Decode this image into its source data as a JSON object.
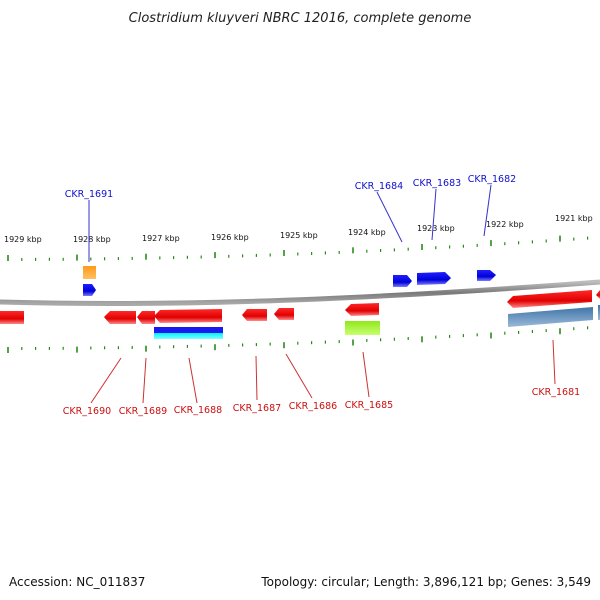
{
  "title": "Clostridium kluyveri NBRC 12016, complete genome",
  "footer": {
    "accession": "Accession: NC_011837",
    "summary": "Topology: circular; Length: 3,896,121 bp; Genes: 3,549"
  },
  "scale": {
    "ticks": [
      {
        "label": "1929 kbp"
      },
      {
        "label": "1928 kbp"
      },
      {
        "label": "1927 kbp"
      },
      {
        "label": "1926 kbp"
      },
      {
        "label": "1925 kbp"
      },
      {
        "label": "1924 kbp"
      },
      {
        "label": "1923 kbp"
      },
      {
        "label": "1922 kbp"
      },
      {
        "label": "1921 kbp"
      }
    ]
  },
  "genes": {
    "forward": [
      {
        "label": "CKR_1691",
        "color": "#1010cc"
      },
      {
        "label": "CKR_1684",
        "color": "#1010cc"
      },
      {
        "label": "CKR_1683",
        "color": "#1010cc"
      },
      {
        "label": "CKR_1682",
        "color": "#1010cc"
      }
    ],
    "reverse": [
      {
        "label": "CKR_1690",
        "color": "#cc1010"
      },
      {
        "label": "CKR_1689",
        "color": "#cc1010"
      },
      {
        "label": "CKR_1688",
        "color": "#cc1010"
      },
      {
        "label": "CKR_1687",
        "color": "#cc1010"
      },
      {
        "label": "CKR_1686",
        "color": "#cc1010"
      },
      {
        "label": "CKR_1685",
        "color": "#cc1010"
      },
      {
        "label": "CKR_1681",
        "color": "#cc1010"
      }
    ]
  },
  "colors": {
    "forward_gene": "#0000ee",
    "reverse_gene": "#ee0000",
    "trna": "#ff8800",
    "rrna_band": "#00e5ee",
    "misc_feature": "#99ee22",
    "cds_band": "#4a7fb0",
    "backbone": "#888888",
    "tick": "#2a8a1a"
  }
}
